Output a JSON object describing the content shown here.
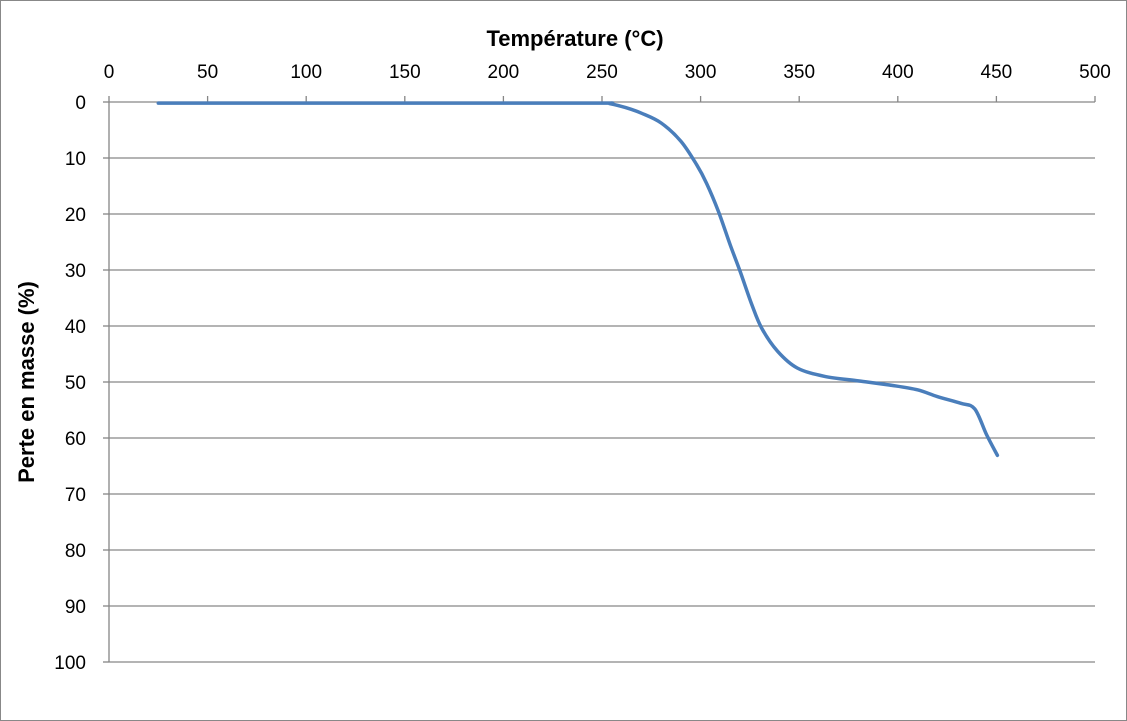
{
  "chart_data": {
    "type": "line",
    "title": "",
    "xlabel": "Température (°C)",
    "ylabel": "Perte en masse (%)",
    "xlim": [
      0,
      500
    ],
    "ylim": [
      0,
      100
    ],
    "y_inverted": true,
    "x_axis_position": "top",
    "grid": "horizontal",
    "legend": "none",
    "xticks": [
      0,
      50,
      100,
      150,
      200,
      250,
      300,
      350,
      400,
      450,
      500
    ],
    "yticks": [
      0,
      10,
      20,
      30,
      40,
      50,
      60,
      70,
      80,
      90,
      100
    ],
    "series_color": "#4a7ebb",
    "series": [
      {
        "name": "Perte en masse",
        "x": [
          25,
          100,
          200,
          251,
          254,
          262,
          270,
          280,
          290,
          298,
          303,
          309,
          315,
          320,
          326,
          331,
          339,
          349,
          363,
          380,
          397,
          410,
          420,
          432,
          439,
          445,
          450.5
        ],
        "y": [
          0.2,
          0.2,
          0.2,
          0.2,
          0.3,
          1.0,
          2.0,
          3.75,
          7.0,
          11.2,
          14.5,
          19.5,
          25.5,
          30.2,
          36.2,
          40.4,
          44.5,
          47.5,
          49.0,
          49.8,
          50.6,
          51.4,
          52.6,
          53.8,
          54.8,
          59.4,
          63.1
        ]
      }
    ]
  }
}
